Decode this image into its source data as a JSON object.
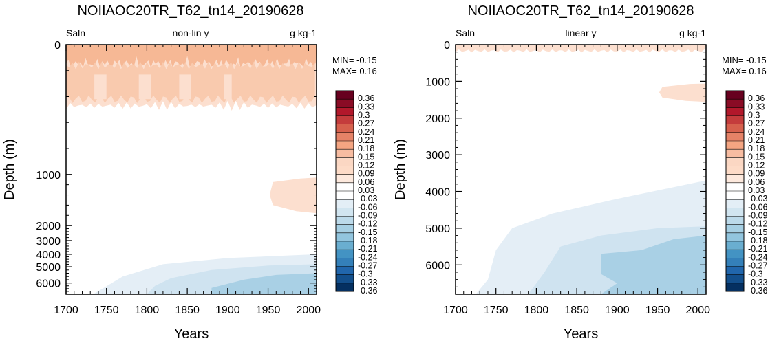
{
  "chart_data": [
    {
      "type": "heatmap",
      "title": "NOIIAOC20TR_T62_tn14_20190628",
      "left_label": "Saln",
      "center_label": "non-lin y",
      "right_label": "g kg-1",
      "min_text": "MIN= -0.15",
      "max_text": "MAX=  0.16",
      "xlabel": "Years",
      "ylabel": "Depth (m)",
      "scale": "nonlinear",
      "xlim": [
        1700,
        2010
      ],
      "ylim": [
        0,
        6800
      ],
      "x_ticks": [
        1700,
        1750,
        1800,
        1850,
        1900,
        1950,
        2000
      ],
      "y_ticks": [
        0,
        1000,
        2000,
        3000,
        4000,
        5000,
        6000
      ],
      "levels": [
        -0.36,
        -0.33,
        -0.3,
        -0.27,
        -0.24,
        -0.21,
        -0.18,
        -0.15,
        -0.12,
        -0.09,
        -0.06,
        -0.03,
        0.03,
        0.06,
        0.09,
        0.12,
        0.15,
        0.18,
        0.21,
        0.24,
        0.27,
        0.3,
        0.33,
        0.36
      ],
      "colorbar_labels": [
        "0.36",
        "0.33",
        "0.3",
        "0.27",
        "0.24",
        "0.21",
        "0.18",
        "0.15",
        "0.12",
        "0.09",
        "0.06",
        "0.03",
        "-0.03",
        "-0.06",
        "-0.09",
        "-0.12",
        "-0.15",
        "-0.18",
        "-0.21",
        "-0.24",
        "-0.27",
        "-0.3",
        "-0.33",
        "-0.36"
      ]
    },
    {
      "type": "heatmap",
      "title": "NOIIAOC20TR_T62_tn14_20190628",
      "left_label": "Saln",
      "center_label": "linear y",
      "right_label": "g kg-1",
      "min_text": "MIN= -0.15",
      "max_text": "MAX=  0.16",
      "xlabel": "Years",
      "ylabel": "Depth (m)",
      "scale": "linear",
      "xlim": [
        1700,
        2010
      ],
      "ylim": [
        0,
        6800
      ],
      "x_ticks": [
        1700,
        1750,
        1800,
        1850,
        1900,
        1950,
        2000
      ],
      "y_ticks": [
        0,
        1000,
        2000,
        3000,
        4000,
        5000,
        6000
      ],
      "levels": [
        -0.36,
        -0.33,
        -0.3,
        -0.27,
        -0.24,
        -0.21,
        -0.18,
        -0.15,
        -0.12,
        -0.09,
        -0.06,
        -0.03,
        0.03,
        0.06,
        0.09,
        0.12,
        0.15,
        0.18,
        0.21,
        0.24,
        0.27,
        0.3,
        0.33,
        0.36
      ],
      "colorbar_labels": [
        "0.36",
        "0.33",
        "0.3",
        "0.27",
        "0.24",
        "0.21",
        "0.18",
        "0.15",
        "0.12",
        "0.09",
        "0.06",
        "0.03",
        "-0.03",
        "-0.06",
        "-0.09",
        "-0.12",
        "-0.15",
        "-0.18",
        "-0.21",
        "-0.24",
        "-0.27",
        "-0.3",
        "-0.33",
        "-0.36"
      ]
    }
  ],
  "colors": {
    "bar": [
      "#67001f",
      "#8a0b25",
      "#b2182b",
      "#c43c3c",
      "#d6604d",
      "#e58267",
      "#f4a582",
      "#f7bca1",
      "#fbd7c3",
      "#fddbc7",
      "#fde9dd",
      "#ffffff",
      "#ffffff",
      "#e3eef6",
      "#d1e5f0",
      "#bcdaea",
      "#a6cfe3",
      "#92c5de",
      "#6aaed0",
      "#4393c3",
      "#3480b9",
      "#2166ac",
      "#134f8c",
      "#053061"
    ],
    "pos_light": "#fcdfcf",
    "pos_mid": "#f9caae",
    "pos_strong": "#f6b895",
    "neg_light": "#e4eef6",
    "neg_mid": "#cfe3f0",
    "neg_strong": "#a9d0e5"
  }
}
